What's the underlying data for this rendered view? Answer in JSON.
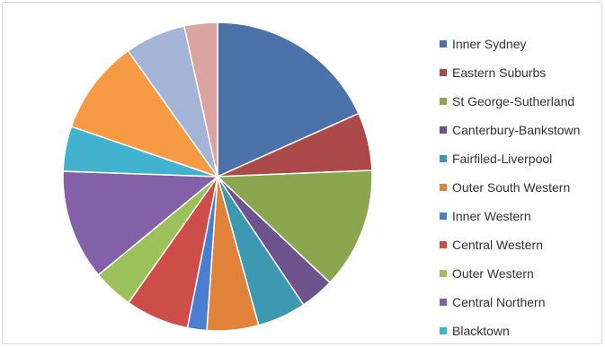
{
  "chart_data": {
    "type": "pie",
    "title": "",
    "start_angle_deg": 0,
    "direction": "clockwise",
    "legend_position": "right",
    "slices": [
      {
        "label": "Inner Sydney",
        "value": 19.0,
        "color": "#4a72a8"
      },
      {
        "label": "Eastern Suburbs",
        "value": 6.3,
        "color": "#ac4a49"
      },
      {
        "label": "St George-Sutherland",
        "value": 13.2,
        "color": "#8aa64e"
      },
      {
        "label": "Canterbury-Bankstown",
        "value": 3.7,
        "color": "#6f538e"
      },
      {
        "label": "Fairfiled-Liverpool",
        "value": 5.3,
        "color": "#3c99b1"
      },
      {
        "label": "Outer South Western",
        "value": 5.6,
        "color": "#e0823a"
      },
      {
        "label": "Inner Western",
        "value": 2.1,
        "color": "#4a7ed2"
      },
      {
        "label": "Central Western",
        "value": 6.9,
        "color": "#cd4d48"
      },
      {
        "label": "Outer Western",
        "value": 4.4,
        "color": "#9cc15a"
      },
      {
        "label": "Central Northern",
        "value": 12.0,
        "color": "#8360a8"
      },
      {
        "label": "Blacktown",
        "value": 4.9,
        "color": "#42b3cf"
      },
      {
        "label": "",
        "value": 10.3,
        "color": "#f79a44"
      },
      {
        "label": "",
        "value": 6.6,
        "color": "#a3b4d6"
      },
      {
        "label": "",
        "value": 3.6,
        "color": "#dca3a3"
      }
    ]
  }
}
